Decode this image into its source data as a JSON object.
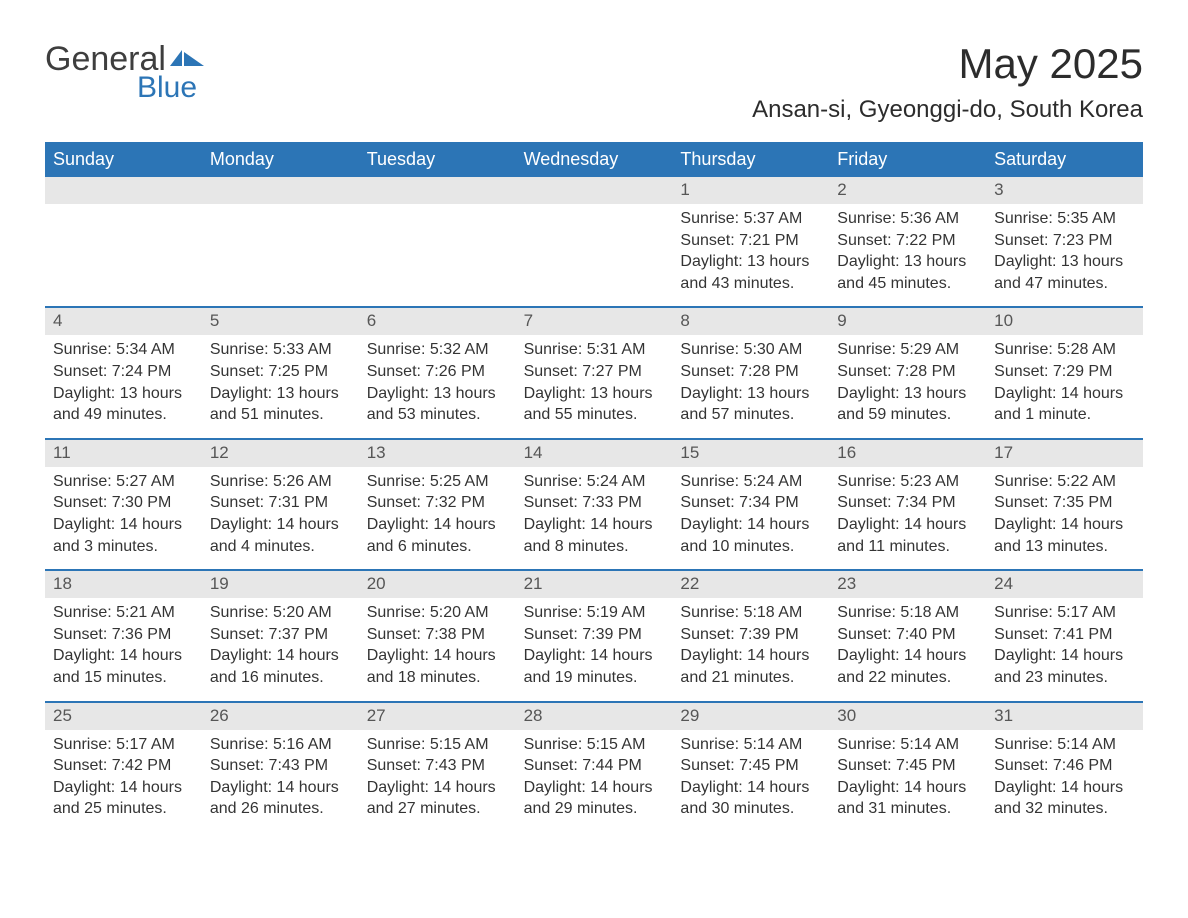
{
  "logo": {
    "text1": "General",
    "text2": "Blue"
  },
  "title": "May 2025",
  "location": "Ansan-si, Gyeonggi-do, South Korea",
  "colors": {
    "header_bg": "#2c75b6",
    "header_text": "#ffffff",
    "daynum_bg": "#e7e7e7",
    "body_text": "#343434",
    "rule": "#2c75b6",
    "page_bg": "#ffffff"
  },
  "day_names": [
    "Sunday",
    "Monday",
    "Tuesday",
    "Wednesday",
    "Thursday",
    "Friday",
    "Saturday"
  ],
  "weeks": [
    [
      null,
      null,
      null,
      null,
      {
        "n": "1",
        "sunrise": "5:37 AM",
        "sunset": "7:21 PM",
        "daylight": "13 hours and 43 minutes."
      },
      {
        "n": "2",
        "sunrise": "5:36 AM",
        "sunset": "7:22 PM",
        "daylight": "13 hours and 45 minutes."
      },
      {
        "n": "3",
        "sunrise": "5:35 AM",
        "sunset": "7:23 PM",
        "daylight": "13 hours and 47 minutes."
      }
    ],
    [
      {
        "n": "4",
        "sunrise": "5:34 AM",
        "sunset": "7:24 PM",
        "daylight": "13 hours and 49 minutes."
      },
      {
        "n": "5",
        "sunrise": "5:33 AM",
        "sunset": "7:25 PM",
        "daylight": "13 hours and 51 minutes."
      },
      {
        "n": "6",
        "sunrise": "5:32 AM",
        "sunset": "7:26 PM",
        "daylight": "13 hours and 53 minutes."
      },
      {
        "n": "7",
        "sunrise": "5:31 AM",
        "sunset": "7:27 PM",
        "daylight": "13 hours and 55 minutes."
      },
      {
        "n": "8",
        "sunrise": "5:30 AM",
        "sunset": "7:28 PM",
        "daylight": "13 hours and 57 minutes."
      },
      {
        "n": "9",
        "sunrise": "5:29 AM",
        "sunset": "7:28 PM",
        "daylight": "13 hours and 59 minutes."
      },
      {
        "n": "10",
        "sunrise": "5:28 AM",
        "sunset": "7:29 PM",
        "daylight": "14 hours and 1 minute."
      }
    ],
    [
      {
        "n": "11",
        "sunrise": "5:27 AM",
        "sunset": "7:30 PM",
        "daylight": "14 hours and 3 minutes."
      },
      {
        "n": "12",
        "sunrise": "5:26 AM",
        "sunset": "7:31 PM",
        "daylight": "14 hours and 4 minutes."
      },
      {
        "n": "13",
        "sunrise": "5:25 AM",
        "sunset": "7:32 PM",
        "daylight": "14 hours and 6 minutes."
      },
      {
        "n": "14",
        "sunrise": "5:24 AM",
        "sunset": "7:33 PM",
        "daylight": "14 hours and 8 minutes."
      },
      {
        "n": "15",
        "sunrise": "5:24 AM",
        "sunset": "7:34 PM",
        "daylight": "14 hours and 10 minutes."
      },
      {
        "n": "16",
        "sunrise": "5:23 AM",
        "sunset": "7:34 PM",
        "daylight": "14 hours and 11 minutes."
      },
      {
        "n": "17",
        "sunrise": "5:22 AM",
        "sunset": "7:35 PM",
        "daylight": "14 hours and 13 minutes."
      }
    ],
    [
      {
        "n": "18",
        "sunrise": "5:21 AM",
        "sunset": "7:36 PM",
        "daylight": "14 hours and 15 minutes."
      },
      {
        "n": "19",
        "sunrise": "5:20 AM",
        "sunset": "7:37 PM",
        "daylight": "14 hours and 16 minutes."
      },
      {
        "n": "20",
        "sunrise": "5:20 AM",
        "sunset": "7:38 PM",
        "daylight": "14 hours and 18 minutes."
      },
      {
        "n": "21",
        "sunrise": "5:19 AM",
        "sunset": "7:39 PM",
        "daylight": "14 hours and 19 minutes."
      },
      {
        "n": "22",
        "sunrise": "5:18 AM",
        "sunset": "7:39 PM",
        "daylight": "14 hours and 21 minutes."
      },
      {
        "n": "23",
        "sunrise": "5:18 AM",
        "sunset": "7:40 PM",
        "daylight": "14 hours and 22 minutes."
      },
      {
        "n": "24",
        "sunrise": "5:17 AM",
        "sunset": "7:41 PM",
        "daylight": "14 hours and 23 minutes."
      }
    ],
    [
      {
        "n": "25",
        "sunrise": "5:17 AM",
        "sunset": "7:42 PM",
        "daylight": "14 hours and 25 minutes."
      },
      {
        "n": "26",
        "sunrise": "5:16 AM",
        "sunset": "7:43 PM",
        "daylight": "14 hours and 26 minutes."
      },
      {
        "n": "27",
        "sunrise": "5:15 AM",
        "sunset": "7:43 PM",
        "daylight": "14 hours and 27 minutes."
      },
      {
        "n": "28",
        "sunrise": "5:15 AM",
        "sunset": "7:44 PM",
        "daylight": "14 hours and 29 minutes."
      },
      {
        "n": "29",
        "sunrise": "5:14 AM",
        "sunset": "7:45 PM",
        "daylight": "14 hours and 30 minutes."
      },
      {
        "n": "30",
        "sunrise": "5:14 AM",
        "sunset": "7:45 PM",
        "daylight": "14 hours and 31 minutes."
      },
      {
        "n": "31",
        "sunrise": "5:14 AM",
        "sunset": "7:46 PM",
        "daylight": "14 hours and 32 minutes."
      }
    ]
  ],
  "labels": {
    "sunrise": "Sunrise: ",
    "sunset": "Sunset: ",
    "daylight": "Daylight: "
  }
}
